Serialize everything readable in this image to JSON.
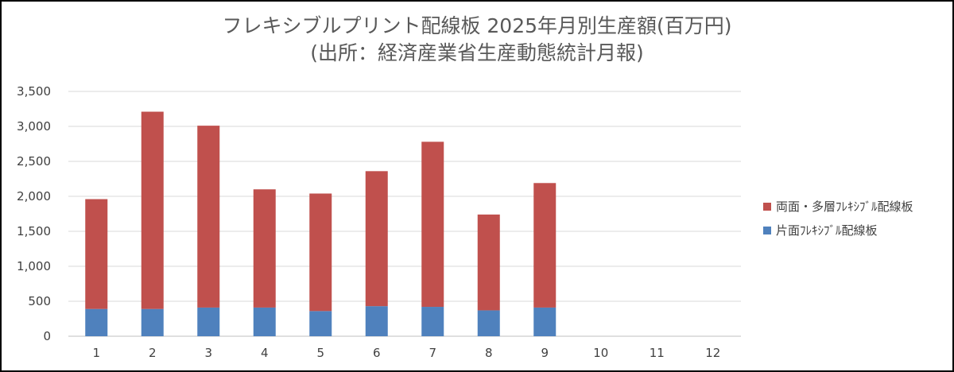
{
  "chart_data": {
    "type": "bar",
    "stacked": true,
    "title": "フレキシブルプリント配線板 2025年月別生産額(百万円)",
    "subtitle": "(出所：経済産業省生産動態統計月報)",
    "xlabel": "",
    "ylabel": "",
    "categories": [
      "1",
      "2",
      "3",
      "4",
      "5",
      "6",
      "7",
      "8",
      "9",
      "10",
      "11",
      "12"
    ],
    "ylim": [
      0,
      3500
    ],
    "yticks": [
      "0",
      "500",
      "1,000",
      "1,500",
      "2,000",
      "2,500",
      "3,000",
      "3,500"
    ],
    "grid": true,
    "legend_position": "right",
    "series": [
      {
        "name": "片面ﾌﾚｷｼﾌﾞﾙ配線板",
        "color": "#4f81bd",
        "values": [
          390,
          390,
          410,
          410,
          360,
          430,
          420,
          370,
          410,
          null,
          null,
          null
        ]
      },
      {
        "name": "両面・多層ﾌﾚｷｼﾌﾞﾙ配線板",
        "color": "#c0504d",
        "values": [
          1570,
          2820,
          2600,
          1690,
          1680,
          1930,
          2360,
          1370,
          1780,
          null,
          null,
          null
        ]
      }
    ]
  }
}
